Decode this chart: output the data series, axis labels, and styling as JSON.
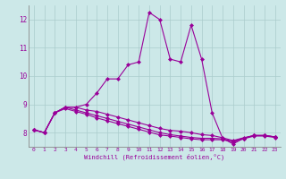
{
  "xlabel": "Windchill (Refroidissement éolien,°C)",
  "bg_color": "#cce8e8",
  "grid_color": "#aacccc",
  "line_color": "#990099",
  "marker": "D",
  "markersize": 2,
  "linewidth": 0.8,
  "xlim": [
    -0.5,
    23.5
  ],
  "ylim": [
    7.5,
    12.5
  ],
  "yticks": [
    8,
    9,
    10,
    11,
    12
  ],
  "xticks": [
    0,
    1,
    2,
    3,
    4,
    5,
    6,
    7,
    8,
    9,
    10,
    11,
    12,
    13,
    14,
    15,
    16,
    17,
    18,
    19,
    20,
    21,
    22,
    23
  ],
  "series": [
    [
      8.1,
      8.0,
      8.7,
      8.9,
      8.9,
      9.0,
      9.4,
      9.9,
      9.9,
      10.4,
      10.5,
      12.25,
      12.0,
      10.6,
      10.5,
      11.8,
      10.6,
      8.7,
      7.8,
      7.6,
      7.8,
      7.9,
      7.9,
      7.85
    ],
    [
      8.1,
      8.0,
      8.7,
      8.9,
      8.9,
      8.8,
      8.75,
      8.65,
      8.55,
      8.45,
      8.35,
      8.25,
      8.15,
      8.08,
      8.05,
      8.0,
      7.93,
      7.9,
      7.82,
      7.72,
      7.82,
      7.9,
      7.9,
      7.85
    ],
    [
      8.1,
      8.0,
      8.7,
      8.9,
      8.8,
      8.7,
      8.6,
      8.5,
      8.4,
      8.3,
      8.2,
      8.1,
      8.0,
      7.93,
      7.88,
      7.83,
      7.8,
      7.8,
      7.78,
      7.7,
      7.8,
      7.9,
      7.9,
      7.85
    ],
    [
      8.1,
      8.0,
      8.7,
      8.85,
      8.75,
      8.65,
      8.52,
      8.42,
      8.32,
      8.22,
      8.12,
      8.02,
      7.92,
      7.88,
      7.83,
      7.78,
      7.75,
      7.75,
      7.75,
      7.67,
      7.78,
      7.88,
      7.88,
      7.83
    ]
  ]
}
